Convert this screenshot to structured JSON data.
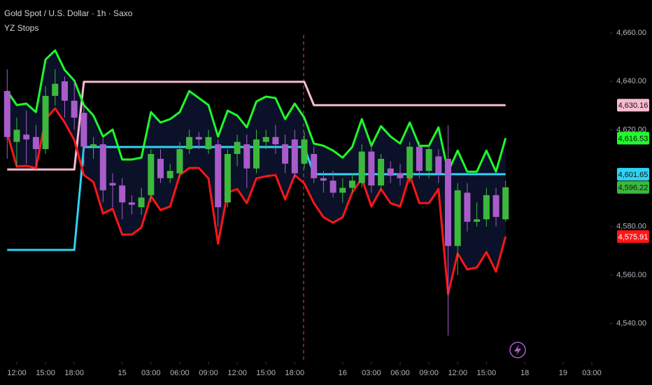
{
  "chart_data": {
    "type": "candlestick",
    "title": "Gold Spot / U.S. Dollar · 1h · Saxo",
    "indicator": "YZ Stops",
    "up_color": "#3cb93c",
    "down_color": "#a95cc9",
    "x": [
      -1,
      0,
      1,
      2,
      3,
      4,
      5,
      6,
      7,
      8,
      9,
      10,
      11,
      12,
      13,
      14,
      15,
      16,
      17,
      18,
      19,
      20,
      21,
      22,
      23,
      24,
      25,
      26,
      27,
      28,
      29,
      30,
      31,
      32,
      33,
      34,
      35,
      36,
      37,
      38,
      39,
      40,
      41,
      42,
      43,
      44,
      45,
      46,
      47,
      48,
      49,
      50,
      51
    ],
    "open": [
      4636,
      4615,
      4618,
      4617,
      4612,
      4634,
      4640,
      4632,
      4627,
      4613,
      4614,
      4598,
      4597,
      4590,
      4588,
      4593,
      4608,
      4600,
      4602,
      4612,
      4617,
      4612,
      4614,
      4590,
      4610,
      4614,
      4604,
      4615,
      4617,
      4614,
      4616,
      4606,
      4610,
      4600,
      4599,
      4594,
      4596,
      4598,
      4611,
      4597,
      4604,
      4602,
      4600,
      4613,
      4603,
      4609,
      4608,
      4572,
      4594,
      4582,
      4583,
      4593,
      4583
    ],
    "high": [
      4645,
      4625,
      4628,
      4622,
      4638,
      4645,
      4642,
      4640,
      4630,
      4617,
      4617,
      4602,
      4600,
      4593,
      4596,
      4612,
      4612,
      4606,
      4615,
      4620,
      4619,
      4620,
      4616,
      4612,
      4618,
      4618,
      4620,
      4620,
      4622,
      4618,
      4620,
      4619,
      4613,
      4603,
      4603,
      4600,
      4602,
      4614,
      4614,
      4610,
      4607,
      4606,
      4615,
      4615,
      4614,
      4612,
      4622,
      4598,
      4598,
      4590,
      4596,
      4596,
      4599
    ],
    "low": [
      4608,
      4605,
      4606,
      4605,
      4610,
      4630,
      4625,
      4620,
      4605,
      4608,
      4590,
      4588,
      4583,
      4585,
      4585,
      4590,
      4598,
      4598,
      4600,
      4610,
      4612,
      4610,
      4580,
      4588,
      4605,
      4596,
      4602,
      4612,
      4610,
      4602,
      4600,
      4604,
      4598,
      4594,
      4592,
      4590,
      4594,
      4596,
      4594,
      4595,
      4598,
      4597,
      4598,
      4600,
      4600,
      4598,
      4535,
      4560,
      4578,
      4580,
      4580,
      4580,
      4582
    ],
    "close": [
      4617,
      4620,
      4616,
      4612,
      4634,
      4639,
      4632,
      4625,
      4613,
      4614,
      4595,
      4597,
      4590,
      4589,
      4592,
      4610,
      4600,
      4603,
      4612,
      4617,
      4616,
      4617,
      4588,
      4610,
      4615,
      4604,
      4616,
      4617,
      4614,
      4606,
      4602,
      4616,
      4600,
      4599,
      4594,
      4596,
      4599,
      4611,
      4597,
      4608,
      4601,
      4600,
      4613,
      4603,
      4612,
      4602,
      4572,
      4595,
      4582,
      4583,
      4593,
      4584,
      4596.22
    ],
    "last_price_label": "4,596.22",
    "series": [
      {
        "color": "#f8bbd0",
        "text_color": "#131313",
        "last_label": "4,630.16",
        "values": [
          4603.6,
          4603.6,
          4603.6,
          4603.6,
          4603.6,
          4603.6,
          4603.6,
          4603.6,
          4639.8,
          4639.8,
          4639.8,
          4639.8,
          4639.8,
          4639.8,
          4639.8,
          4639.8,
          4639.8,
          4639.8,
          4639.8,
          4639.8,
          4639.8,
          4639.8,
          4639.8,
          4639.8,
          4639.8,
          4639.8,
          4639.8,
          4639.8,
          4639.8,
          4639.8,
          4639.8,
          4639.8,
          4630.16,
          4630.16,
          4630.16,
          4630.16,
          4630.16,
          4630.16,
          4630.16,
          4630.16,
          4630.16,
          4630.16,
          4630.16,
          4630.16,
          4630.16,
          4630.16,
          4630.16,
          4630.16,
          4630.16,
          4630.16,
          4630.16,
          4630.16,
          4630.16
        ]
      },
      {
        "color": "#2ed3f3",
        "text_color": "#131313",
        "last_label": "4,601.65",
        "values": [
          4570.4,
          4570.4,
          4570.4,
          4570.4,
          4570.4,
          4570.4,
          4570.4,
          4570.4,
          4612.9,
          4612.9,
          4612.9,
          4612.9,
          4612.9,
          4612.9,
          4612.9,
          4612.9,
          4612.9,
          4612.9,
          4612.9,
          4612.9,
          4612.9,
          4612.9,
          4612.9,
          4612.9,
          4612.9,
          4612.9,
          4612.9,
          4612.9,
          4612.9,
          4612.9,
          4612.9,
          4612.9,
          4601.65,
          4601.65,
          4601.65,
          4601.65,
          4601.65,
          4601.65,
          4601.65,
          4601.65,
          4601.65,
          4601.65,
          4601.65,
          4601.65,
          4601.65,
          4601.65,
          4601.65,
          4601.65,
          4601.65,
          4601.65,
          4601.65,
          4601.65,
          4601.65
        ]
      },
      {
        "color": "#1efb2a",
        "text_color": "#131313",
        "last_label": "4,616.53",
        "values": [
          4636.0,
          4630.2,
          4630.8,
          4627.3,
          4649.0,
          4652.8,
          4644.7,
          4640.3,
          4630.2,
          4625.9,
          4617.2,
          4620.1,
          4607.7,
          4607.7,
          4608.5,
          4627.3,
          4623.0,
          4624.4,
          4627.3,
          4636.0,
          4633.1,
          4630.2,
          4617.2,
          4627.9,
          4625.9,
          4621.0,
          4631.7,
          4633.7,
          4633.1,
          4624.4,
          4630.8,
          4625.0,
          4614.3,
          4613.4,
          4611.4,
          4608.5,
          4612.9,
          4624.4,
          4613.4,
          4621.5,
          4617.2,
          4614.3,
          4623.0,
          4613.4,
          4613.4,
          4621.0,
          4602.7,
          4611.4,
          4602.7,
          4602.7,
          4611.4,
          4602.7,
          4616.53
        ]
      },
      {
        "color": "#ff1616",
        "text_color": "#ffffff",
        "last_label": "4,575.91",
        "values": [
          4618.6,
          4604.8,
          4605.1,
          4604.2,
          4624.4,
          4628.8,
          4623.0,
          4615.8,
          4601.3,
          4598.4,
          4585.4,
          4587.4,
          4576.7,
          4576.7,
          4579.6,
          4592.6,
          4586.8,
          4588.3,
          4601.3,
          4604.2,
          4604.2,
          4599.9,
          4573.0,
          4594.1,
          4595.5,
          4589.7,
          4599.9,
          4600.8,
          4601.3,
          4591.2,
          4601.3,
          4597.8,
          4589.7,
          4583.9,
          4581.6,
          4583.9,
          4594.1,
          4599.9,
          4588.3,
          4595.5,
          4589.7,
          4588.3,
          4601.3,
          4589.7,
          4589.7,
          4595.5,
          4552.1,
          4568.9,
          4562.3,
          4563.1,
          4569.5,
          4561.4,
          4575.91
        ]
      }
    ],
    "xlim": [
      -1.75,
      61.75
    ],
    "xticks": [
      {
        "value": 0,
        "label": "12:00"
      },
      {
        "value": 3,
        "label": "15:00"
      },
      {
        "value": 6,
        "label": "18:00"
      },
      {
        "value": 11,
        "label": "15"
      },
      {
        "value": 14,
        "label": "03:00"
      },
      {
        "value": 17,
        "label": "06:00"
      },
      {
        "value": 20,
        "label": "09:00"
      },
      {
        "value": 23,
        "label": "12:00"
      },
      {
        "value": 26,
        "label": "15:00"
      },
      {
        "value": 29,
        "label": "18:00"
      },
      {
        "value": 34,
        "label": "16"
      },
      {
        "value": 37,
        "label": "03:00"
      },
      {
        "value": 40,
        "label": "06:00"
      },
      {
        "value": 43,
        "label": "09:00"
      },
      {
        "value": 46,
        "label": "12:00"
      },
      {
        "value": 49,
        "label": "15:00"
      },
      {
        "value": 53,
        "label": "18"
      },
      {
        "value": 57,
        "label": "19"
      },
      {
        "value": 60,
        "label": "03:00"
      }
    ],
    "ylim": [
      4524.7,
      4673.6
    ],
    "yticks": [
      {
        "value": 4540,
        "label": "4,540.00"
      },
      {
        "value": 4560,
        "label": "4,560.00"
      },
      {
        "value": 4580,
        "label": "4,580.00"
      },
      {
        "value": 4620,
        "label": "4,620.00"
      },
      {
        "value": 4640,
        "label": "4,640.00"
      },
      {
        "value": 4660,
        "label": "4,660.00"
      }
    ],
    "grid": false
  }
}
